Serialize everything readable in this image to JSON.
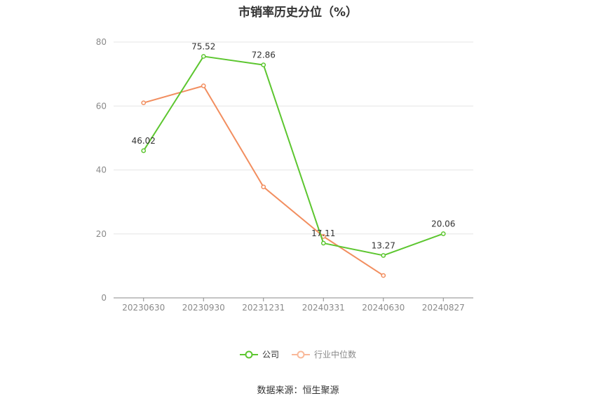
{
  "colors": {
    "company": "#5cc62f",
    "industry": "#f28e5f",
    "grid": "#e6e6e6",
    "axis": "#888888"
  },
  "chart_data": {
    "type": "line",
    "title": "市销率历史分位（%）",
    "categories": [
      "20230630",
      "20230930",
      "20231231",
      "20240331",
      "20240630",
      "20240827"
    ],
    "ylim": [
      0,
      80
    ],
    "yticks": [
      0,
      20,
      40,
      60,
      80
    ],
    "grid": true,
    "legend_position": "bottom",
    "series": [
      {
        "name": "公司",
        "values": [
          46.02,
          75.52,
          72.86,
          17.11,
          13.27,
          20.06
        ],
        "labels": [
          "46.02",
          "75.52",
          "72.86",
          "17.11",
          "13.27",
          "20.06"
        ]
      },
      {
        "name": "行业中位数",
        "values": [
          61,
          66.3,
          34.7,
          19.2,
          7.0,
          null
        ]
      }
    ]
  },
  "source": "数据来源：恒生聚源"
}
